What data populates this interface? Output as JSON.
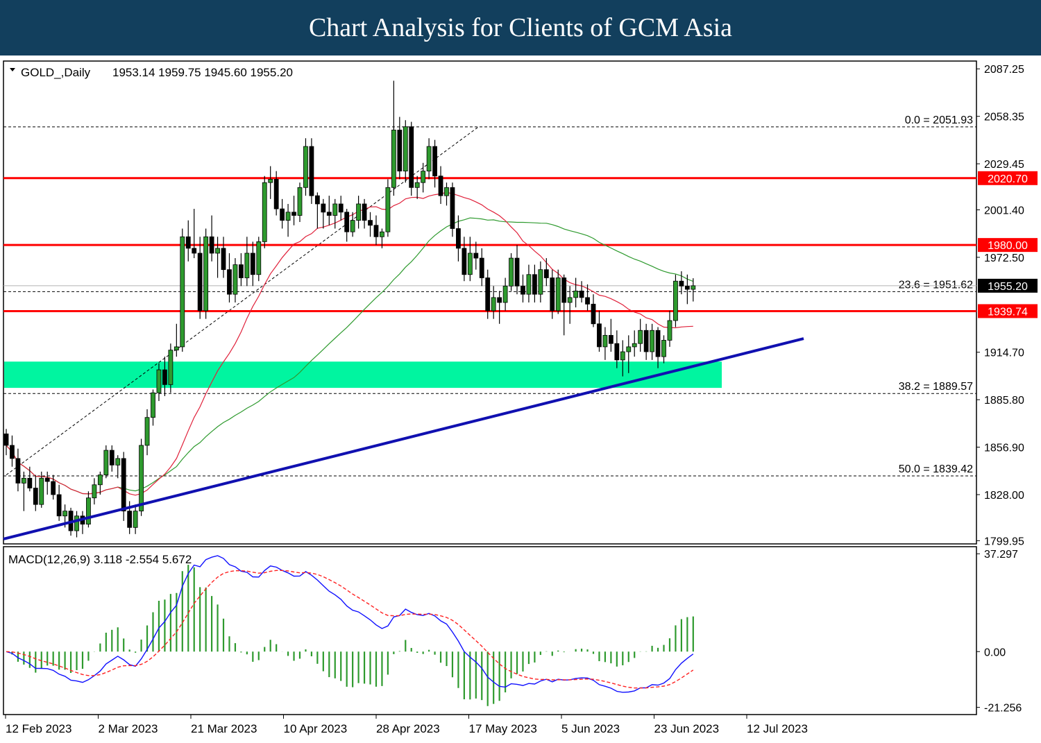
{
  "banner": {
    "title": "Chart Analysis for Clients of GCM Asia"
  },
  "chart_data": {
    "type": "candlestick",
    "symbol_header": "GOLD_,Daily",
    "ohlc_header": "1953.14 1959.75 1945.60 1955.20",
    "price_axis": {
      "ticks": [
        2087.25,
        2058.35,
        2029.45,
        2001.4,
        1972.5,
        1914.7,
        1885.8,
        1856.9,
        1828.0,
        1799.95
      ],
      "tick_labels": [
        "2087.25",
        "2058.35",
        "2029.45",
        "2001.40",
        "1972.50",
        "1914.70",
        "1885.80",
        "1856.90",
        "1828.00",
        "1799.95"
      ],
      "range": [
        1798,
        2092
      ]
    },
    "date_axis": {
      "labels": [
        "12 Feb 2023",
        "2 Mar 2023",
        "21 Mar 2023",
        "10 Apr 2023",
        "28 Apr 2023",
        "17 May 2023",
        "5 Jun 2023",
        "23 Jun 2023",
        "12 Jul 2023"
      ]
    },
    "current_price": {
      "value": 1955.2,
      "label": "1955.20"
    },
    "horizontal_levels": [
      {
        "value": 2020.7,
        "label": "2020.70",
        "color": "#ff0000"
      },
      {
        "value": 1980.0,
        "label": "1980.00",
        "color": "#ff0000"
      },
      {
        "value": 1939.74,
        "label": "1939.74",
        "color": "#ff0000"
      }
    ],
    "fibonacci_levels": [
      {
        "value": 2051.93,
        "label": "0.0 = 2051.93"
      },
      {
        "value": 1951.62,
        "label": "23.6 = 1951.62"
      },
      {
        "value": 1889.57,
        "label": "38.2 = 1889.57"
      },
      {
        "value": 1839.42,
        "label": "50.0 = 1839.42"
      }
    ],
    "support_zone": {
      "low": 1893,
      "high": 1909,
      "color": "#00f5a0"
    },
    "trendline": {
      "color": "#1010b0",
      "from": {
        "bar": 0,
        "price": 1801
      },
      "to": {
        "bar": 103,
        "price": 1923
      }
    },
    "fib_trend_line": {
      "from": {
        "bar": 0,
        "price": 1840
      },
      "to": {
        "bar": 71,
        "price": 2052
      }
    },
    "ma_fast_color": "#e0203a",
    "ma_slow_color": "#2e9a2e",
    "candle_color_up": "#2e9a2e",
    "candle_color_down": "#2e9a2e",
    "candles": [
      [
        1865,
        1868,
        1852,
        1858
      ],
      [
        1858,
        1864,
        1845,
        1850
      ],
      [
        1850,
        1856,
        1830,
        1835
      ],
      [
        1835,
        1842,
        1818,
        1838
      ],
      [
        1838,
        1845,
        1830,
        1832
      ],
      [
        1832,
        1840,
        1818,
        1822
      ],
      [
        1822,
        1842,
        1820,
        1838
      ],
      [
        1838,
        1842,
        1828,
        1836
      ],
      [
        1836,
        1840,
        1825,
        1828
      ],
      [
        1828,
        1834,
        1812,
        1815
      ],
      [
        1815,
        1822,
        1808,
        1818
      ],
      [
        1818,
        1820,
        1803,
        1806
      ],
      [
        1806,
        1818,
        1802,
        1815
      ],
      [
        1815,
        1818,
        1804,
        1810
      ],
      [
        1810,
        1830,
        1808,
        1826
      ],
      [
        1826,
        1838,
        1822,
        1834
      ],
      [
        1834,
        1842,
        1828,
        1840
      ],
      [
        1840,
        1858,
        1838,
        1855
      ],
      [
        1855,
        1858,
        1842,
        1846
      ],
      [
        1846,
        1852,
        1838,
        1850
      ],
      [
        1850,
        1854,
        1812,
        1818
      ],
      [
        1818,
        1824,
        1804,
        1808
      ],
      [
        1808,
        1822,
        1804,
        1818
      ],
      [
        1818,
        1862,
        1815,
        1858
      ],
      [
        1858,
        1880,
        1852,
        1875
      ],
      [
        1875,
        1892,
        1870,
        1890
      ],
      [
        1890,
        1908,
        1885,
        1904
      ],
      [
        1904,
        1912,
        1888,
        1895
      ],
      [
        1895,
        1920,
        1890,
        1916
      ],
      [
        1916,
        1932,
        1912,
        1918
      ],
      [
        1918,
        1990,
        1915,
        1985
      ],
      [
        1985,
        1995,
        1970,
        1978
      ],
      [
        1978,
        2002,
        1972,
        1975
      ],
      [
        1975,
        1985,
        1935,
        1940
      ],
      [
        1940,
        1990,
        1935,
        1985
      ],
      [
        1985,
        1998,
        1970,
        1975
      ],
      [
        1975,
        1985,
        1960,
        1978
      ],
      [
        1978,
        1985,
        1960,
        1965
      ],
      [
        1965,
        1975,
        1945,
        1950
      ],
      [
        1950,
        1972,
        1945,
        1968
      ],
      [
        1968,
        1975,
        1955,
        1960
      ],
      [
        1960,
        1985,
        1955,
        1975
      ],
      [
        1975,
        1982,
        1955,
        1962
      ],
      [
        1962,
        1985,
        1958,
        1982
      ],
      [
        1982,
        2022,
        1978,
        2018
      ],
      [
        2018,
        2028,
        2008,
        2020
      ],
      [
        2020,
        2025,
        1998,
        2002
      ],
      [
        2002,
        2008,
        1990,
        1995
      ],
      [
        1995,
        2005,
        1985,
        2000
      ],
      [
        2000,
        2010,
        1992,
        1998
      ],
      [
        1998,
        2018,
        1994,
        2015
      ],
      [
        2015,
        2045,
        2010,
        2040
      ],
      [
        2040,
        2045,
        2005,
        2010
      ],
      [
        2010,
        2012,
        1990,
        2005
      ],
      [
        2005,
        2008,
        1990,
        2000
      ],
      [
        2000,
        2010,
        1992,
        1998
      ],
      [
        1998,
        2008,
        1990,
        2005
      ],
      [
        2005,
        2010,
        1995,
        2000
      ],
      [
        2000,
        2002,
        1982,
        1988
      ],
      [
        1988,
        2000,
        1985,
        1995
      ],
      [
        1995,
        2010,
        1990,
        2005
      ],
      [
        2005,
        2008,
        1990,
        1995
      ],
      [
        1995,
        2000,
        1985,
        1992
      ],
      [
        1992,
        1998,
        1980,
        1985
      ],
      [
        1985,
        1990,
        1978,
        1988
      ],
      [
        1988,
        2020,
        1985,
        2015
      ],
      [
        2015,
        2080,
        2010,
        2050
      ],
      [
        2050,
        2058,
        2020,
        2025
      ],
      [
        2025,
        2056,
        2018,
        2052
      ],
      [
        2052,
        2055,
        2010,
        2015
      ],
      [
        2015,
        2022,
        2008,
        2018
      ],
      [
        2018,
        2030,
        2012,
        2025
      ],
      [
        2025,
        2045,
        2020,
        2040
      ],
      [
        2040,
        2044,
        2015,
        2022
      ],
      [
        2022,
        2028,
        2005,
        2010
      ],
      [
        2010,
        2018,
        2004,
        2015
      ],
      [
        2015,
        2018,
        1985,
        1990
      ],
      [
        1990,
        1998,
        1970,
        1978
      ],
      [
        1978,
        1985,
        1958,
        1962
      ],
      [
        1962,
        1985,
        1958,
        1975
      ],
      [
        1975,
        1982,
        1965,
        1972
      ],
      [
        1972,
        1978,
        1955,
        1960
      ],
      [
        1960,
        1965,
        1935,
        1940
      ],
      [
        1940,
        1955,
        1935,
        1948
      ],
      [
        1948,
        1952,
        1932,
        1945
      ],
      [
        1945,
        1960,
        1940,
        1955
      ],
      [
        1955,
        1975,
        1952,
        1972
      ],
      [
        1972,
        1980,
        1950,
        1955
      ],
      [
        1955,
        1962,
        1945,
        1950
      ],
      [
        1950,
        1968,
        1945,
        1962
      ],
      [
        1962,
        1968,
        1945,
        1950
      ],
      [
        1950,
        1970,
        1945,
        1965
      ],
      [
        1965,
        1972,
        1955,
        1960
      ],
      [
        1960,
        1965,
        1935,
        1940
      ],
      [
        1940,
        1965,
        1938,
        1960
      ],
      [
        1960,
        1962,
        1925,
        1945
      ],
      [
        1945,
        1955,
        1932,
        1948
      ],
      [
        1948,
        1960,
        1942,
        1952
      ],
      [
        1952,
        1958,
        1945,
        1948
      ],
      [
        1948,
        1956,
        1940,
        1944
      ],
      [
        1944,
        1950,
        1930,
        1932
      ],
      [
        1932,
        1940,
        1915,
        1918
      ],
      [
        1918,
        1930,
        1910,
        1925
      ],
      [
        1925,
        1935,
        1915,
        1920
      ],
      [
        1920,
        1928,
        1905,
        1910
      ],
      [
        1910,
        1922,
        1900,
        1915
      ],
      [
        1915,
        1925,
        1902,
        1918
      ],
      [
        1918,
        1928,
        1912,
        1920
      ],
      [
        1920,
        1935,
        1915,
        1928
      ],
      [
        1928,
        1932,
        1910,
        1915
      ],
      [
        1915,
        1932,
        1910,
        1928
      ],
      [
        1928,
        1930,
        1905,
        1912
      ],
      [
        1912,
        1925,
        1908,
        1922
      ],
      [
        1922,
        1940,
        1918,
        1934
      ],
      [
        1934,
        1962,
        1930,
        1958
      ],
      [
        1958,
        1964,
        1950,
        1955
      ],
      [
        1955,
        1962,
        1944,
        1953
      ],
      [
        1953,
        1959.75,
        1945.6,
        1955.2
      ]
    ],
    "macd": {
      "header": "MACD(12,26,9) 3.118 -2.554 5.672",
      "ticks": [
        37.297,
        0,
        -21.256
      ],
      "tick_labels": [
        "37.297",
        "0.00",
        "-21.256"
      ],
      "range": [
        -24,
        40
      ],
      "main_color": "#1010ff",
      "signal_color": "#ff2020",
      "histogram_color": "#2e9a2e"
    }
  }
}
